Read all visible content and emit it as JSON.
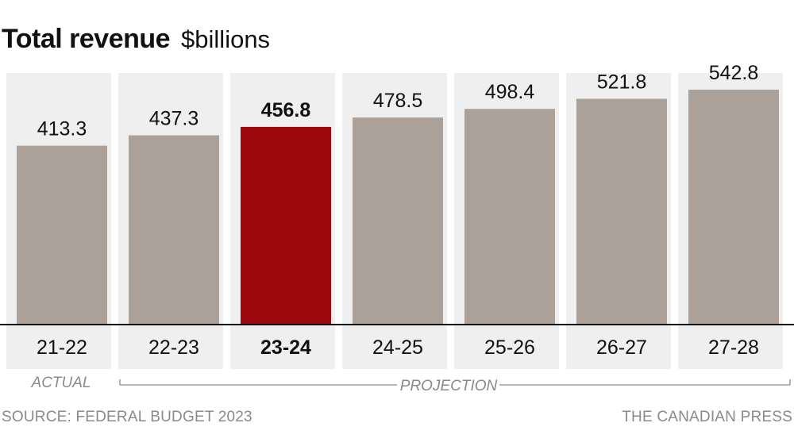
{
  "title": "Total revenue",
  "subtitle": "$billions",
  "actual_label": "ACTUAL",
  "projection_label": "PROJECTION",
  "source": "SOURCE: FEDERAL BUDGET 2023",
  "credit": "THE CANADIAN PRESS",
  "colors": {
    "bar": "#aba198",
    "highlight": "#9c0a10",
    "column_bg": "#efefef",
    "axis": "#111111",
    "label": "#111111",
    "footnote": "#8a8a8a"
  },
  "chart_data": {
    "type": "bar",
    "title": "Total revenue",
    "subtitle": "$billions",
    "categories": [
      "21-22",
      "22-23",
      "23-24",
      "24-25",
      "25-26",
      "26-27",
      "27-28"
    ],
    "values": [
      413.3,
      437.3,
      456.8,
      478.5,
      498.4,
      521.8,
      542.8
    ],
    "value_labels": [
      "413.3",
      "437.3",
      "456.8",
      "478.5",
      "498.4",
      "521.8",
      "542.8"
    ],
    "highlight": "23-24",
    "actual_categories": [
      "21-22"
    ],
    "projection_categories": [
      "22-23",
      "23-24",
      "24-25",
      "25-26",
      "26-27",
      "27-28"
    ],
    "ylim": [
      0,
      750
    ],
    "grid": false,
    "legend": "none"
  }
}
